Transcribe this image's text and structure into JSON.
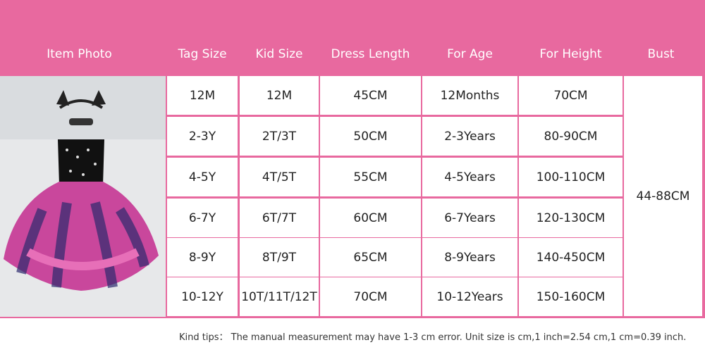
{
  "header": {
    "columns": [
      "Item Photo",
      "Tag Size",
      "Kid Size",
      "Dress Length",
      "For Age",
      "For Height",
      "Bust"
    ]
  },
  "table": {
    "rows": [
      [
        "12M",
        "12M",
        "45CM",
        "12Months",
        "70CM"
      ],
      [
        "2-3Y",
        "2T/3T",
        "50CM",
        "2-3Years",
        "80-90CM"
      ],
      [
        "4-5Y",
        "4T/5T",
        "55CM",
        "4-5Years",
        "100-110CM"
      ],
      [
        "6-7Y",
        "6T/7T",
        "60CM",
        "6-7Years",
        "120-130CM"
      ],
      [
        "8-9Y",
        "8T/9T",
        "65CM",
        "8-9Years",
        "140-450CM"
      ],
      [
        "10-12Y",
        "10T/11T/12T",
        "70CM",
        "10-12Years",
        "150-160CM"
      ]
    ],
    "bust": "44-88CM"
  },
  "footnote": "Kind tips： The manual measurement may have 1-3 cm error. Unit size is cm,1 inch=2.54 cm,1 cm=0.39 inch."
}
